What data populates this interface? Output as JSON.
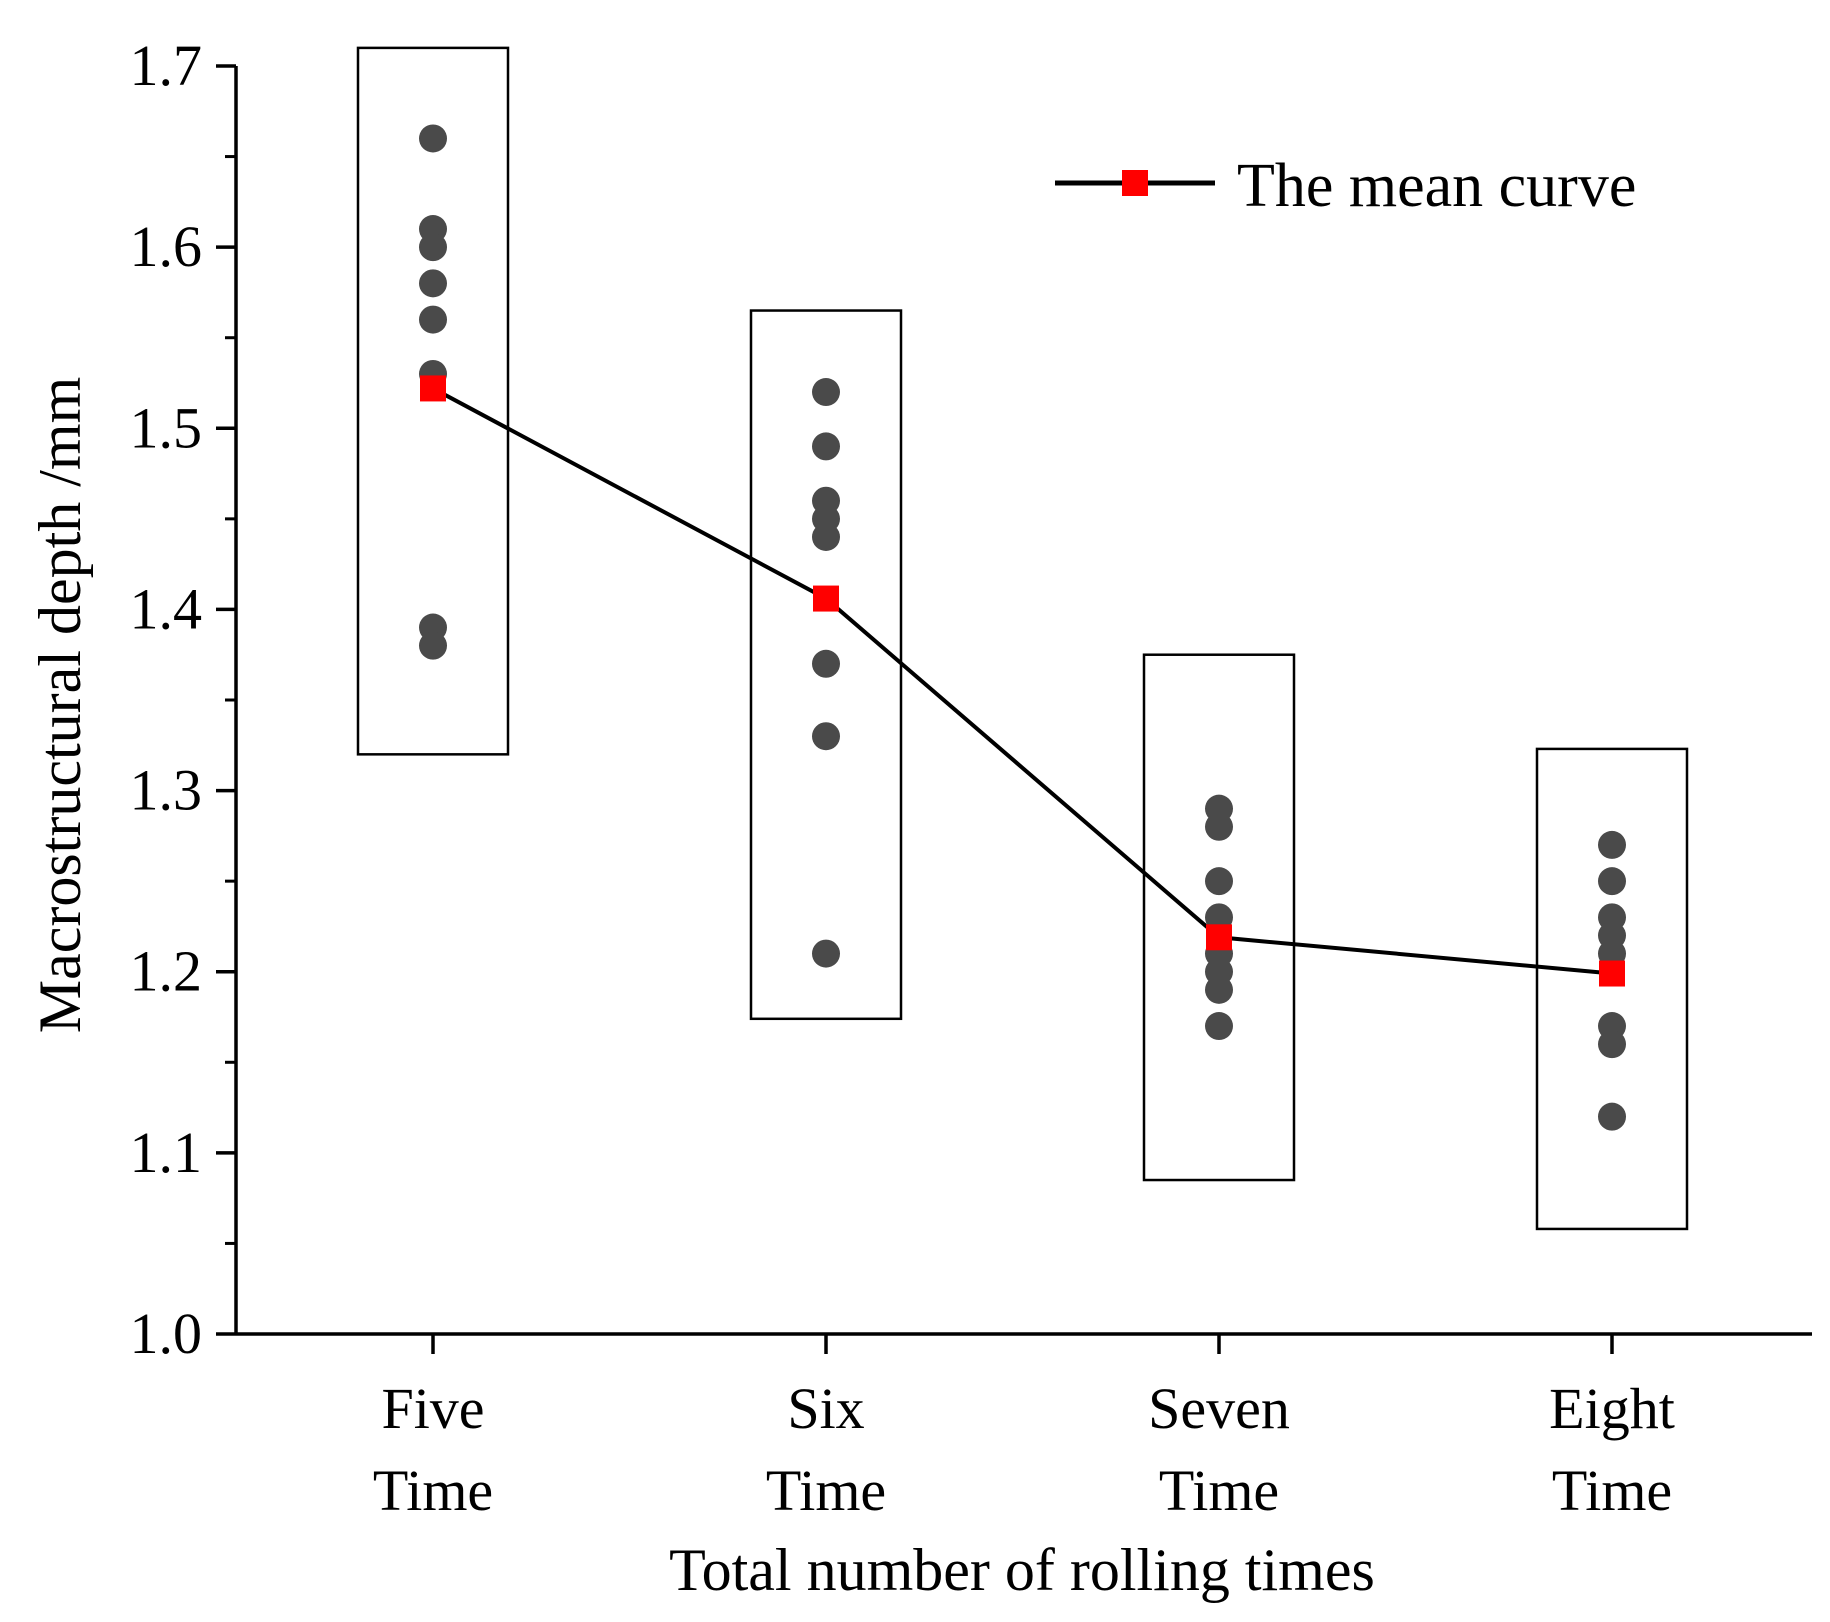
{
  "chart_data": {
    "type": "scatter",
    "title": "",
    "xlabel": "Total number of rolling times",
    "ylabel": "Macrostructural depth /mm",
    "ylim": [
      1.0,
      1.7
    ],
    "yticks": [
      "1.0",
      "1.1",
      "1.2",
      "1.3",
      "1.4",
      "1.5",
      "1.6",
      "1.7"
    ],
    "grid": false,
    "categories": [
      {
        "line1": "Five",
        "line2": "Time"
      },
      {
        "line1": "Six",
        "line2": "Time"
      },
      {
        "line1": "Seven",
        "line2": "Time"
      },
      {
        "line1": "Eight",
        "line2": "Time"
      }
    ],
    "points": [
      [
        1.66,
        1.61,
        1.6,
        1.58,
        1.56,
        1.53,
        1.39,
        1.38
      ],
      [
        1.52,
        1.49,
        1.46,
        1.45,
        1.44,
        1.37,
        1.33,
        1.21
      ],
      [
        1.29,
        1.28,
        1.25,
        1.23,
        1.21,
        1.2,
        1.19,
        1.17
      ],
      [
        1.27,
        1.25,
        1.23,
        1.22,
        1.21,
        1.17,
        1.16,
        1.12
      ]
    ],
    "series": [
      {
        "name": "The mean curve",
        "values": [
          1.522,
          1.406,
          1.219,
          1.199
        ]
      }
    ],
    "group_boxes": [
      [
        1.32,
        1.71
      ],
      [
        1.174,
        1.565
      ],
      [
        1.085,
        1.375
      ],
      [
        1.058,
        1.323
      ]
    ],
    "legend": {
      "label": "The mean curve",
      "position": "top-right"
    },
    "colors": {
      "points": "#4a4a4a",
      "mean_marker": "#ff0000",
      "line": "#000000"
    }
  }
}
